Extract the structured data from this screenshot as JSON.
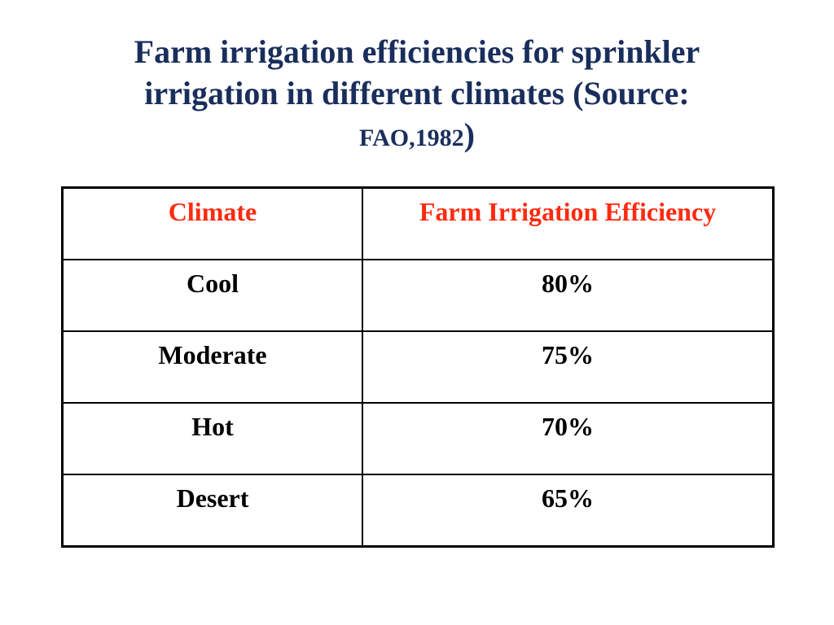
{
  "title": {
    "line1": "Farm irrigation efficiencies for sprinkler",
    "line2": "irrigation in different climates (Source:",
    "line3_source": "FAO,1982",
    "line3_paren": ")"
  },
  "table": {
    "headers": [
      "Climate",
      "Farm Irrigation Efficiency"
    ],
    "rows": [
      [
        "Cool",
        "80%"
      ],
      [
        "Moderate",
        "75%"
      ],
      [
        "Hot",
        "70%"
      ],
      [
        "Desert",
        "65%"
      ]
    ]
  },
  "colors": {
    "title": "#1a2e5c",
    "header_text": "#ff2a0f",
    "cell_text": "#000000",
    "border": "#000000"
  }
}
